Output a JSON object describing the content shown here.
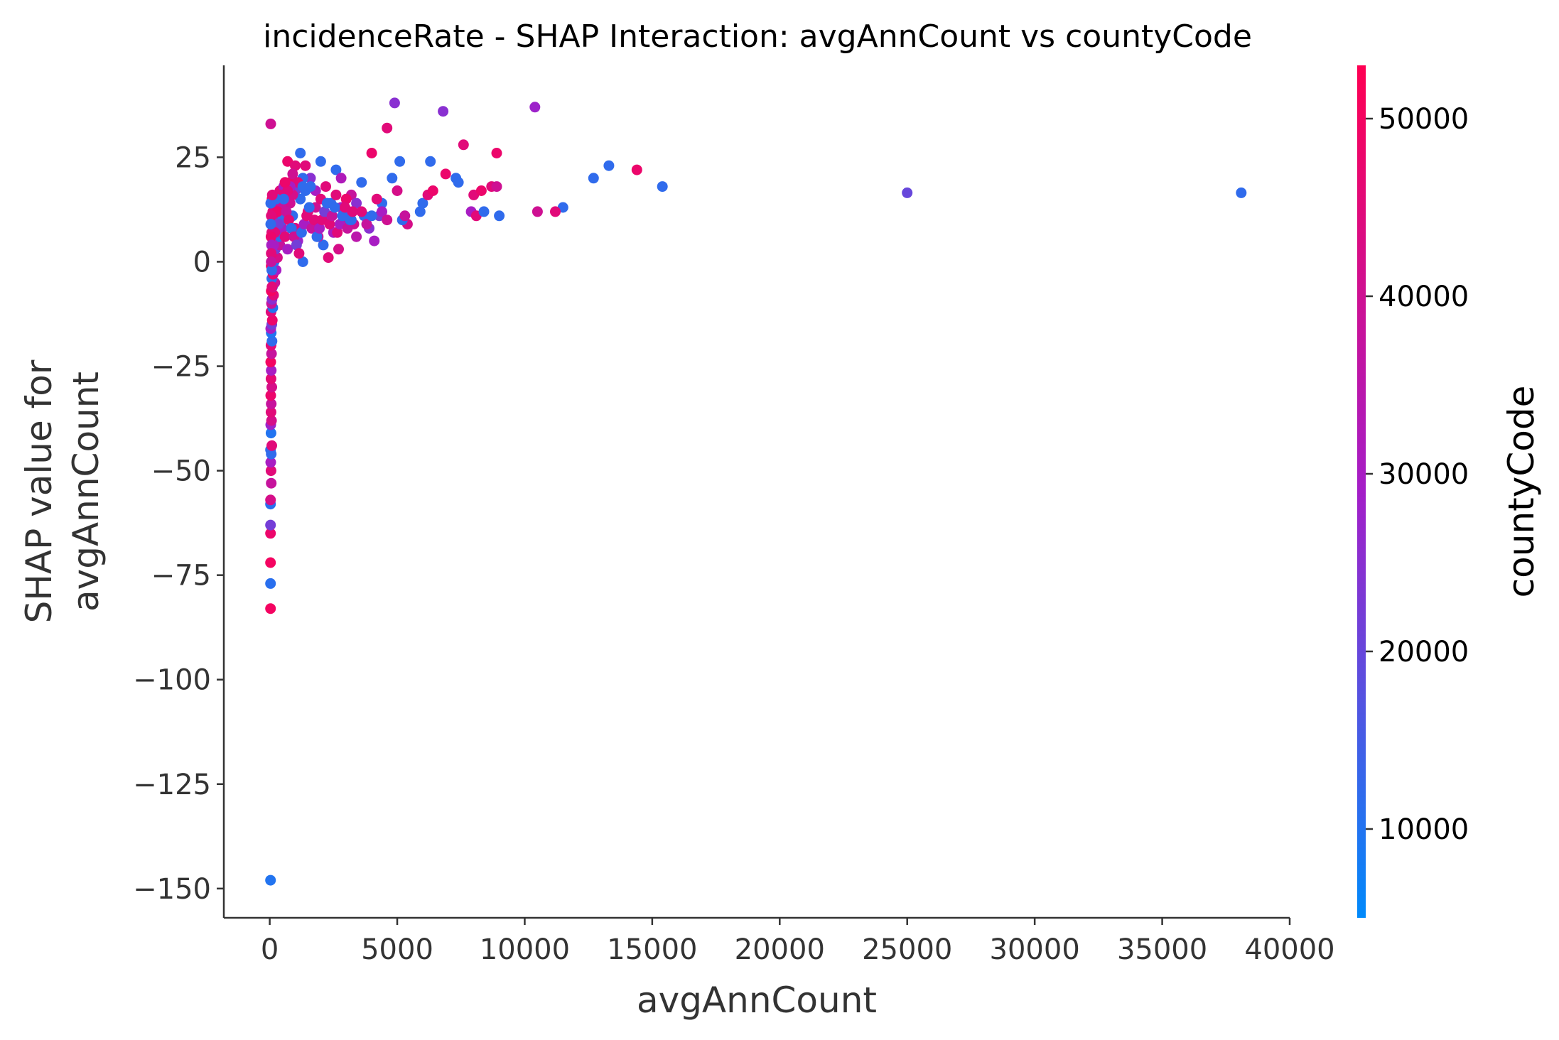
{
  "chart_data": {
    "type": "scatter",
    "title": "incidenceRate - SHAP Interaction: avgAnnCount vs countyCode",
    "xlabel": "avgAnnCount",
    "ylabel": [
      "SHAP value for",
      "avgAnnCount"
    ],
    "xlim": [
      -1800,
      40000
    ],
    "ylim": [
      -157,
      47
    ],
    "x_ticks": [
      0,
      5000,
      10000,
      15000,
      20000,
      25000,
      30000,
      35000,
      40000
    ],
    "x_tick_labels": [
      "0",
      "5000",
      "10000",
      "15000",
      "20000",
      "25000",
      "30000",
      "35000",
      "40000"
    ],
    "y_ticks": [
      25,
      0,
      -25,
      -50,
      -75,
      -100,
      -125,
      -150
    ],
    "y_tick_labels": [
      "25",
      "0",
      "−25",
      "−50",
      "−75",
      "−100",
      "−125",
      "−150"
    ],
    "colorbar": {
      "label": "countyCode",
      "range": [
        5000,
        53000
      ],
      "ticks": [
        10000,
        20000,
        30000,
        40000,
        50000
      ],
      "tick_labels": [
        "10000",
        "20000",
        "30000",
        "40000",
        "50000"
      ],
      "colors": [
        "#008afb",
        "#a41ec8",
        "#ff0052"
      ]
    },
    "points": [
      [
        30,
        -148,
        10000
      ],
      [
        30,
        -83,
        50000
      ],
      [
        30,
        -77,
        11000
      ],
      [
        30,
        -72,
        50000
      ],
      [
        30,
        -65,
        48000
      ],
      [
        30,
        -63,
        22000
      ],
      [
        30,
        -58,
        11000
      ],
      [
        30,
        -57,
        42000
      ],
      [
        60,
        -53,
        38000
      ],
      [
        50,
        -50,
        45000
      ],
      [
        40,
        -48,
        30000
      ],
      [
        60,
        -46,
        12000
      ],
      [
        30,
        -45,
        12000
      ],
      [
        80,
        -44,
        45000
      ],
      [
        50,
        -41,
        10000
      ],
      [
        40,
        -39,
        28000
      ],
      [
        70,
        -38,
        42000
      ],
      [
        50,
        -36,
        45000
      ],
      [
        60,
        -34,
        38000
      ],
      [
        40,
        -32,
        48000
      ],
      [
        80,
        -30,
        42000
      ],
      [
        50,
        -28,
        46000
      ],
      [
        60,
        -26,
        30000
      ],
      [
        40,
        -24,
        50000
      ],
      [
        70,
        -22,
        38000
      ],
      [
        50,
        -20,
        45000
      ],
      [
        90,
        -19,
        12000
      ],
      [
        60,
        -17,
        10000
      ],
      [
        40,
        -16,
        30000
      ],
      [
        80,
        -15,
        22000
      ],
      [
        100,
        -14,
        48000
      ],
      [
        50,
        -12,
        45000
      ],
      [
        120,
        -11,
        10000
      ],
      [
        70,
        -10,
        38000
      ],
      [
        90,
        -9,
        25000
      ],
      [
        150,
        -8,
        45000
      ],
      [
        60,
        -7,
        50000
      ],
      [
        110,
        -6,
        20000
      ],
      [
        200,
        -5,
        38000
      ],
      [
        80,
        -4,
        12000
      ],
      [
        130,
        -3,
        45000
      ],
      [
        250,
        -2,
        30000
      ],
      [
        60,
        -1,
        50000
      ],
      [
        170,
        0,
        12000
      ],
      [
        300,
        1,
        42000
      ],
      [
        100,
        2,
        45000
      ],
      [
        220,
        3,
        22000
      ],
      [
        400,
        4,
        38000
      ],
      [
        140,
        5,
        50000
      ],
      [
        350,
        6,
        12000
      ],
      [
        80,
        7,
        45000
      ],
      [
        500,
        8,
        30000
      ],
      [
        260,
        9,
        48000
      ],
      [
        180,
        10,
        20000
      ],
      [
        450,
        11,
        42000
      ],
      [
        120,
        12,
        45000
      ],
      [
        600,
        13,
        12000
      ],
      [
        320,
        14,
        38000
      ],
      [
        90,
        15,
        50000
      ],
      [
        750,
        16,
        22000
      ],
      [
        400,
        17,
        45000
      ],
      [
        550,
        18,
        30000
      ],
      [
        800,
        19,
        48000
      ],
      [
        700,
        24,
        48000
      ],
      [
        1000,
        23,
        45000
      ],
      [
        1200,
        26,
        12000
      ],
      [
        1400,
        23,
        45000
      ],
      [
        900,
        21,
        40000
      ],
      [
        1600,
        20,
        25000
      ],
      [
        2000,
        24,
        12000
      ],
      [
        2600,
        22,
        12000
      ],
      [
        1300,
        20,
        12000
      ],
      [
        1800,
        17,
        30000
      ],
      [
        2200,
        18,
        45000
      ],
      [
        2800,
        20,
        32000
      ],
      [
        3200,
        16,
        38000
      ],
      [
        3600,
        19,
        12000
      ],
      [
        4000,
        26,
        48000
      ],
      [
        4600,
        32,
        45000
      ],
      [
        4900,
        38,
        25000
      ],
      [
        5100,
        24,
        12000
      ],
      [
        4800,
        20,
        12000
      ],
      [
        4400,
        14,
        12000
      ],
      [
        5000,
        17,
        42000
      ],
      [
        6300,
        24,
        12000
      ],
      [
        6800,
        36,
        25000
      ],
      [
        7600,
        28,
        45000
      ],
      [
        8900,
        26,
        48000
      ],
      [
        10400,
        37,
        28000
      ],
      [
        6900,
        21,
        48000
      ],
      [
        7300,
        20,
        12000
      ],
      [
        7400,
        19,
        12000
      ],
      [
        8000,
        16,
        45000
      ],
      [
        8300,
        17,
        48000
      ],
      [
        8700,
        18,
        45000
      ],
      [
        8900,
        18,
        40000
      ],
      [
        7900,
        12,
        30000
      ],
      [
        8100,
        11,
        45000
      ],
      [
        8400,
        12,
        12000
      ],
      [
        9000,
        11,
        12000
      ],
      [
        6000,
        14,
        12000
      ],
      [
        5900,
        12,
        12000
      ],
      [
        6200,
        16,
        45000
      ],
      [
        6400,
        17,
        48000
      ],
      [
        5400,
        9,
        42000
      ],
      [
        5200,
        10,
        12000
      ],
      [
        5300,
        11,
        38000
      ],
      [
        4300,
        11,
        22000
      ],
      [
        4100,
        5,
        30000
      ],
      [
        3900,
        8,
        25000
      ],
      [
        3700,
        11,
        12000
      ],
      [
        3400,
        6,
        35000
      ],
      [
        3300,
        9,
        40000
      ],
      [
        3100,
        12,
        28000
      ],
      [
        2900,
        10,
        45000
      ],
      [
        2700,
        3,
        42000
      ],
      [
        2500,
        7,
        30000
      ],
      [
        2300,
        1,
        45000
      ],
      [
        2100,
        4,
        12000
      ],
      [
        1900,
        6,
        38000
      ],
      [
        1700,
        9,
        22000
      ],
      [
        1500,
        12,
        45000
      ],
      [
        1300,
        0,
        12000
      ],
      [
        1100,
        5,
        28000
      ],
      [
        1000,
        8,
        45000
      ],
      [
        900,
        11,
        12000
      ],
      [
        800,
        14,
        40000
      ],
      [
        700,
        3,
        30000
      ],
      [
        600,
        6,
        45000
      ],
      [
        500,
        10,
        12000
      ],
      [
        450,
        13,
        38000
      ],
      [
        400,
        16,
        45000
      ],
      [
        350,
        9,
        22000
      ],
      [
        300,
        12,
        48000
      ],
      [
        250,
        15,
        12000
      ],
      [
        200,
        7,
        45000
      ],
      [
        150,
        4,
        30000
      ],
      [
        1200,
        15,
        12000
      ],
      [
        1400,
        17,
        12000
      ],
      [
        1600,
        18,
        12000
      ],
      [
        1800,
        13,
        40000
      ],
      [
        2000,
        15,
        45000
      ],
      [
        2200,
        11,
        28000
      ],
      [
        2400,
        14,
        12000
      ],
      [
        2600,
        16,
        45000
      ],
      [
        2800,
        13,
        30000
      ],
      [
        3000,
        15,
        48000
      ],
      [
        3200,
        10,
        12000
      ],
      [
        3400,
        14,
        25000
      ],
      [
        3600,
        12,
        45000
      ],
      [
        3800,
        9,
        38000
      ],
      [
        4000,
        11,
        12000
      ],
      [
        4200,
        15,
        45000
      ],
      [
        4400,
        12,
        30000
      ],
      [
        4600,
        10,
        40000
      ],
      [
        1000,
        17,
        22000
      ],
      [
        1100,
        19,
        45000
      ],
      [
        1300,
        18,
        12000
      ],
      [
        900,
        16,
        42000
      ],
      [
        800,
        18,
        30000
      ],
      [
        700,
        17,
        45000
      ],
      [
        600,
        19,
        48000
      ],
      [
        550,
        15,
        12000
      ],
      [
        650,
        12,
        38000
      ],
      [
        750,
        10,
        45000
      ],
      [
        850,
        8,
        12000
      ],
      [
        950,
        6,
        40000
      ],
      [
        1050,
        4,
        22000
      ],
      [
        1150,
        2,
        45000
      ],
      [
        1250,
        7,
        12000
      ],
      [
        1350,
        9,
        30000
      ],
      [
        1450,
        11,
        45000
      ],
      [
        1550,
        13,
        12000
      ],
      [
        1650,
        8,
        38000
      ],
      [
        1750,
        10,
        45000
      ],
      [
        1850,
        6,
        12000
      ],
      [
        1950,
        8,
        30000
      ],
      [
        2050,
        10,
        45000
      ],
      [
        2150,
        12,
        22000
      ],
      [
        2250,
        14,
        12000
      ],
      [
        2350,
        9,
        45000
      ],
      [
        2450,
        11,
        38000
      ],
      [
        2550,
        13,
        12000
      ],
      [
        2650,
        7,
        45000
      ],
      [
        2750,
        9,
        30000
      ],
      [
        2850,
        11,
        12000
      ],
      [
        2950,
        13,
        45000
      ],
      [
        3050,
        8,
        38000
      ],
      [
        3150,
        10,
        12000
      ],
      [
        3250,
        12,
        45000
      ],
      [
        12700,
        20,
        12000
      ],
      [
        13300,
        23,
        12000
      ],
      [
        14400,
        22,
        48000
      ],
      [
        15400,
        18,
        12000
      ],
      [
        11500,
        13,
        12000
      ],
      [
        11200,
        12,
        45000
      ],
      [
        10500,
        12,
        40000
      ],
      [
        25000,
        16.5,
        20000
      ],
      [
        38100,
        16.5,
        12000
      ],
      [
        40,
        33,
        40000
      ],
      [
        60,
        11,
        45000
      ],
      [
        40,
        9,
        12000
      ],
      [
        50,
        6,
        48000
      ],
      [
        70,
        4,
        30000
      ],
      [
        60,
        2,
        45000
      ],
      [
        80,
        -2,
        12000
      ],
      [
        40,
        14,
        12000
      ],
      [
        100,
        16,
        45000
      ],
      [
        60,
        0,
        38000
      ],
      [
        90,
        -6,
        45000
      ]
    ]
  }
}
